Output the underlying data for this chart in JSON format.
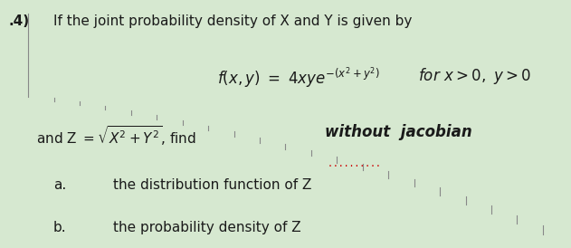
{
  "bg_color": "#d6e8d0",
  "fig_width": 6.31,
  "fig_height": 2.74,
  "number_text": ".4)",
  "line1": "If the joint probability density of X and Y is given by",
  "line2_math": "$f(x, y)\\ =\\ 4xye^{-(x^2+y^2)}$",
  "line2_tail": "$for\\ x > 0,\\ y > 0$",
  "line3_left": "and Z $= \\sqrt{X^2 + Y^2}$, find",
  "line3_bold": "without  jacobian",
  "dots": "..........                    ",
  "item_a_label": "a.",
  "item_a": "the distribution function of Z",
  "item_b_label": "b.",
  "item_b": "the probability density of Z",
  "text_color": "#1a1a1a",
  "dot_color": "#cc0000"
}
